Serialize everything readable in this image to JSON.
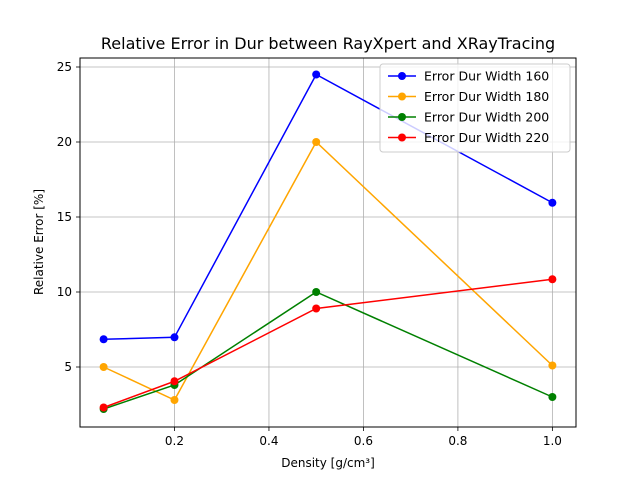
{
  "chart_data": {
    "type": "line",
    "title": "Relative Error in Dur between RayXpert and XRayTracing",
    "xlabel": "Density [g/cm³]",
    "ylabel": "Relative Error [%]",
    "xlim": [
      -0.0,
      1.05
    ],
    "ylim": [
      1.0,
      25.6
    ],
    "xticks": [
      0.2,
      0.4,
      0.6,
      0.8,
      1.0
    ],
    "xtick_labels": [
      "0.2",
      "0.4",
      "0.6",
      "0.8",
      "1.0"
    ],
    "yticks": [
      5,
      10,
      15,
      20,
      25
    ],
    "ytick_labels": [
      "5",
      "10",
      "15",
      "20",
      "25"
    ],
    "grid": true,
    "legend_position": "top-right",
    "x": [
      0.05,
      0.2,
      0.5,
      1.0
    ],
    "series": [
      {
        "name": "Error Dur Width 160",
        "color": "#0000ff",
        "values": [
          6.85,
          6.98,
          24.5,
          15.95
        ]
      },
      {
        "name": "Error Dur Width 180",
        "color": "#ffa500",
        "values": [
          5.0,
          2.8,
          20.0,
          5.1
        ]
      },
      {
        "name": "Error Dur Width 200",
        "color": "#008000",
        "values": [
          2.2,
          3.8,
          10.0,
          3.0
        ]
      },
      {
        "name": "Error Dur Width 220",
        "color": "#ff0000",
        "values": [
          2.3,
          4.05,
          8.9,
          10.85
        ]
      }
    ]
  }
}
